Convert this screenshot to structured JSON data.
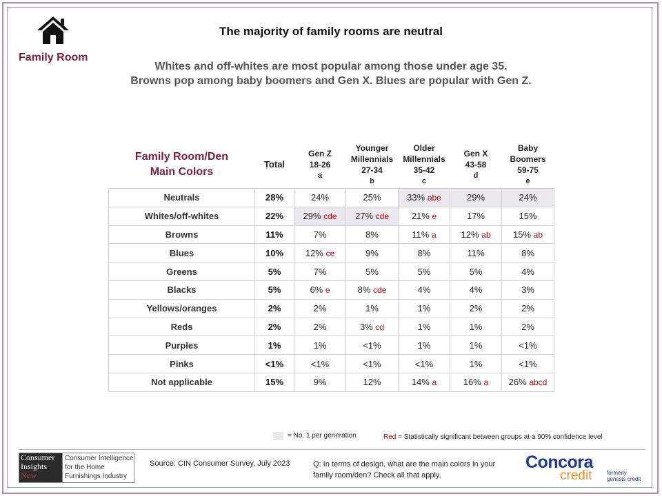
{
  "section_label": "Family Room",
  "title": "The majority of family rooms are neutral",
  "subtitle": [
    "Whites and off-whites are most popular among those under age 35.",
    "Browns pop among baby boomers and Gen X. Blues are popular with Gen Z."
  ],
  "chart_data": {
    "type": "table",
    "header_title": [
      "Family Room/Den",
      "Main Colors"
    ],
    "columns": [
      {
        "key": "total",
        "lines": [
          "Total"
        ],
        "letter": ""
      },
      {
        "key": "genz",
        "lines": [
          "Gen Z",
          "18-26"
        ],
        "letter": "a"
      },
      {
        "key": "ymill",
        "lines": [
          "Younger",
          "Millennials",
          "27-34"
        ],
        "letter": "b"
      },
      {
        "key": "omill",
        "lines": [
          "Older",
          "Millennials",
          "35-42"
        ],
        "letter": "c"
      },
      {
        "key": "genx",
        "lines": [
          "Gen X",
          "43-58"
        ],
        "letter": "d"
      },
      {
        "key": "boomers",
        "lines": [
          "Baby",
          "Boomers",
          "59-75"
        ],
        "letter": "e"
      }
    ],
    "rows": [
      {
        "label": "Neutrals",
        "total": "28%",
        "cells": [
          {
            "value": "24%",
            "sig": "",
            "hl": false
          },
          {
            "value": "25%",
            "sig": "",
            "hl": false
          },
          {
            "value": "33%",
            "sig": "abe",
            "hl": true
          },
          {
            "value": "29%",
            "sig": "",
            "hl": true
          },
          {
            "value": "24%",
            "sig": "",
            "hl": true
          }
        ]
      },
      {
        "label": "Whites/off-whites",
        "total": "22%",
        "cells": [
          {
            "value": "29%",
            "sig": "cde",
            "hl": true
          },
          {
            "value": "27%",
            "sig": "cde",
            "hl": true
          },
          {
            "value": "21%",
            "sig": "e",
            "hl": false
          },
          {
            "value": "17%",
            "sig": "",
            "hl": false
          },
          {
            "value": "15%",
            "sig": "",
            "hl": false
          }
        ]
      },
      {
        "label": "Browns",
        "total": "11%",
        "cells": [
          {
            "value": "7%",
            "sig": "",
            "hl": false
          },
          {
            "value": "8%",
            "sig": "",
            "hl": false
          },
          {
            "value": "11%",
            "sig": "a",
            "hl": false
          },
          {
            "value": "12%",
            "sig": "ab",
            "hl": false
          },
          {
            "value": "15%",
            "sig": "ab",
            "hl": false
          }
        ]
      },
      {
        "label": "Blues",
        "total": "10%",
        "cells": [
          {
            "value": "12%",
            "sig": "ce",
            "hl": false
          },
          {
            "value": "9%",
            "sig": "",
            "hl": false
          },
          {
            "value": "8%",
            "sig": "",
            "hl": false
          },
          {
            "value": "11%",
            "sig": "",
            "hl": false
          },
          {
            "value": "8%",
            "sig": "",
            "hl": false
          }
        ]
      },
      {
        "label": "Greens",
        "total": "5%",
        "cells": [
          {
            "value": "7%",
            "sig": "",
            "hl": false
          },
          {
            "value": "5%",
            "sig": "",
            "hl": false
          },
          {
            "value": "5%",
            "sig": "",
            "hl": false
          },
          {
            "value": "5%",
            "sig": "",
            "hl": false
          },
          {
            "value": "4%",
            "sig": "",
            "hl": false
          }
        ]
      },
      {
        "label": "Blacks",
        "total": "5%",
        "cells": [
          {
            "value": "6%",
            "sig": "e",
            "hl": false
          },
          {
            "value": "8%",
            "sig": "cde",
            "hl": false
          },
          {
            "value": "4%",
            "sig": "",
            "hl": false
          },
          {
            "value": "4%",
            "sig": "",
            "hl": false
          },
          {
            "value": "3%",
            "sig": "",
            "hl": false
          }
        ]
      },
      {
        "label": "Yellows/oranges",
        "total": "2%",
        "cells": [
          {
            "value": "2%",
            "sig": "",
            "hl": false
          },
          {
            "value": "1%",
            "sig": "",
            "hl": false
          },
          {
            "value": "1%",
            "sig": "",
            "hl": false
          },
          {
            "value": "2%",
            "sig": "",
            "hl": false
          },
          {
            "value": "2%",
            "sig": "",
            "hl": false
          }
        ]
      },
      {
        "label": "Reds",
        "total": "2%",
        "cells": [
          {
            "value": "2%",
            "sig": "",
            "hl": false
          },
          {
            "value": "3%",
            "sig": "cd",
            "hl": false
          },
          {
            "value": "1%",
            "sig": "",
            "hl": false
          },
          {
            "value": "1%",
            "sig": "",
            "hl": false
          },
          {
            "value": "2%",
            "sig": "",
            "hl": false
          }
        ]
      },
      {
        "label": "Purples",
        "total": "1%",
        "cells": [
          {
            "value": "1%",
            "sig": "",
            "hl": false
          },
          {
            "value": "<1%",
            "sig": "",
            "hl": false
          },
          {
            "value": "1%",
            "sig": "",
            "hl": false
          },
          {
            "value": "1%",
            "sig": "",
            "hl": false
          },
          {
            "value": "<1%",
            "sig": "",
            "hl": false
          }
        ]
      },
      {
        "label": "Pinks",
        "total": "<1%",
        "cells": [
          {
            "value": "<1%",
            "sig": "",
            "hl": false
          },
          {
            "value": "<1%",
            "sig": "",
            "hl": false
          },
          {
            "value": "<1%",
            "sig": "",
            "hl": false
          },
          {
            "value": "1%",
            "sig": "",
            "hl": false
          },
          {
            "value": "<1%",
            "sig": "",
            "hl": false
          }
        ]
      },
      {
        "label": "Not applicable",
        "total": "15%",
        "cells": [
          {
            "value": "9%",
            "sig": "",
            "hl": false
          },
          {
            "value": "12%",
            "sig": "",
            "hl": false
          },
          {
            "value": "14%",
            "sig": "a",
            "hl": false
          },
          {
            "value": "16%",
            "sig": "a",
            "hl": false
          },
          {
            "value": "26%",
            "sig": "abcd",
            "hl": false
          }
        ]
      }
    ]
  },
  "legend": {
    "highlight_text": "= No. 1 per generation",
    "red_word": "Red",
    "red_text": " = Statistically significant between groups at a 90% confidence level",
    "highlight_color": "#ebe8ef",
    "sig_color": "#c00000"
  },
  "footer": {
    "cin_logo": [
      "Consumer",
      "Insights",
      "Now"
    ],
    "cin_tagline": "Consumer Intelligence for the Home Furnishings Industry",
    "source": "Source: CIN Consumer Survey, July 2023",
    "question": "Q: In terms of design, what are the main colors in your family room/den? Check all that apply.",
    "concora_word": "Concora",
    "concora_credit": "credit",
    "concora_formerly": [
      "formerly",
      "genesis credit"
    ]
  },
  "colors": {
    "accent": "#7a1f3f",
    "frame": "#b98aa0",
    "concora_blue": "#1f3a93",
    "concora_orange": "#f08a24"
  }
}
